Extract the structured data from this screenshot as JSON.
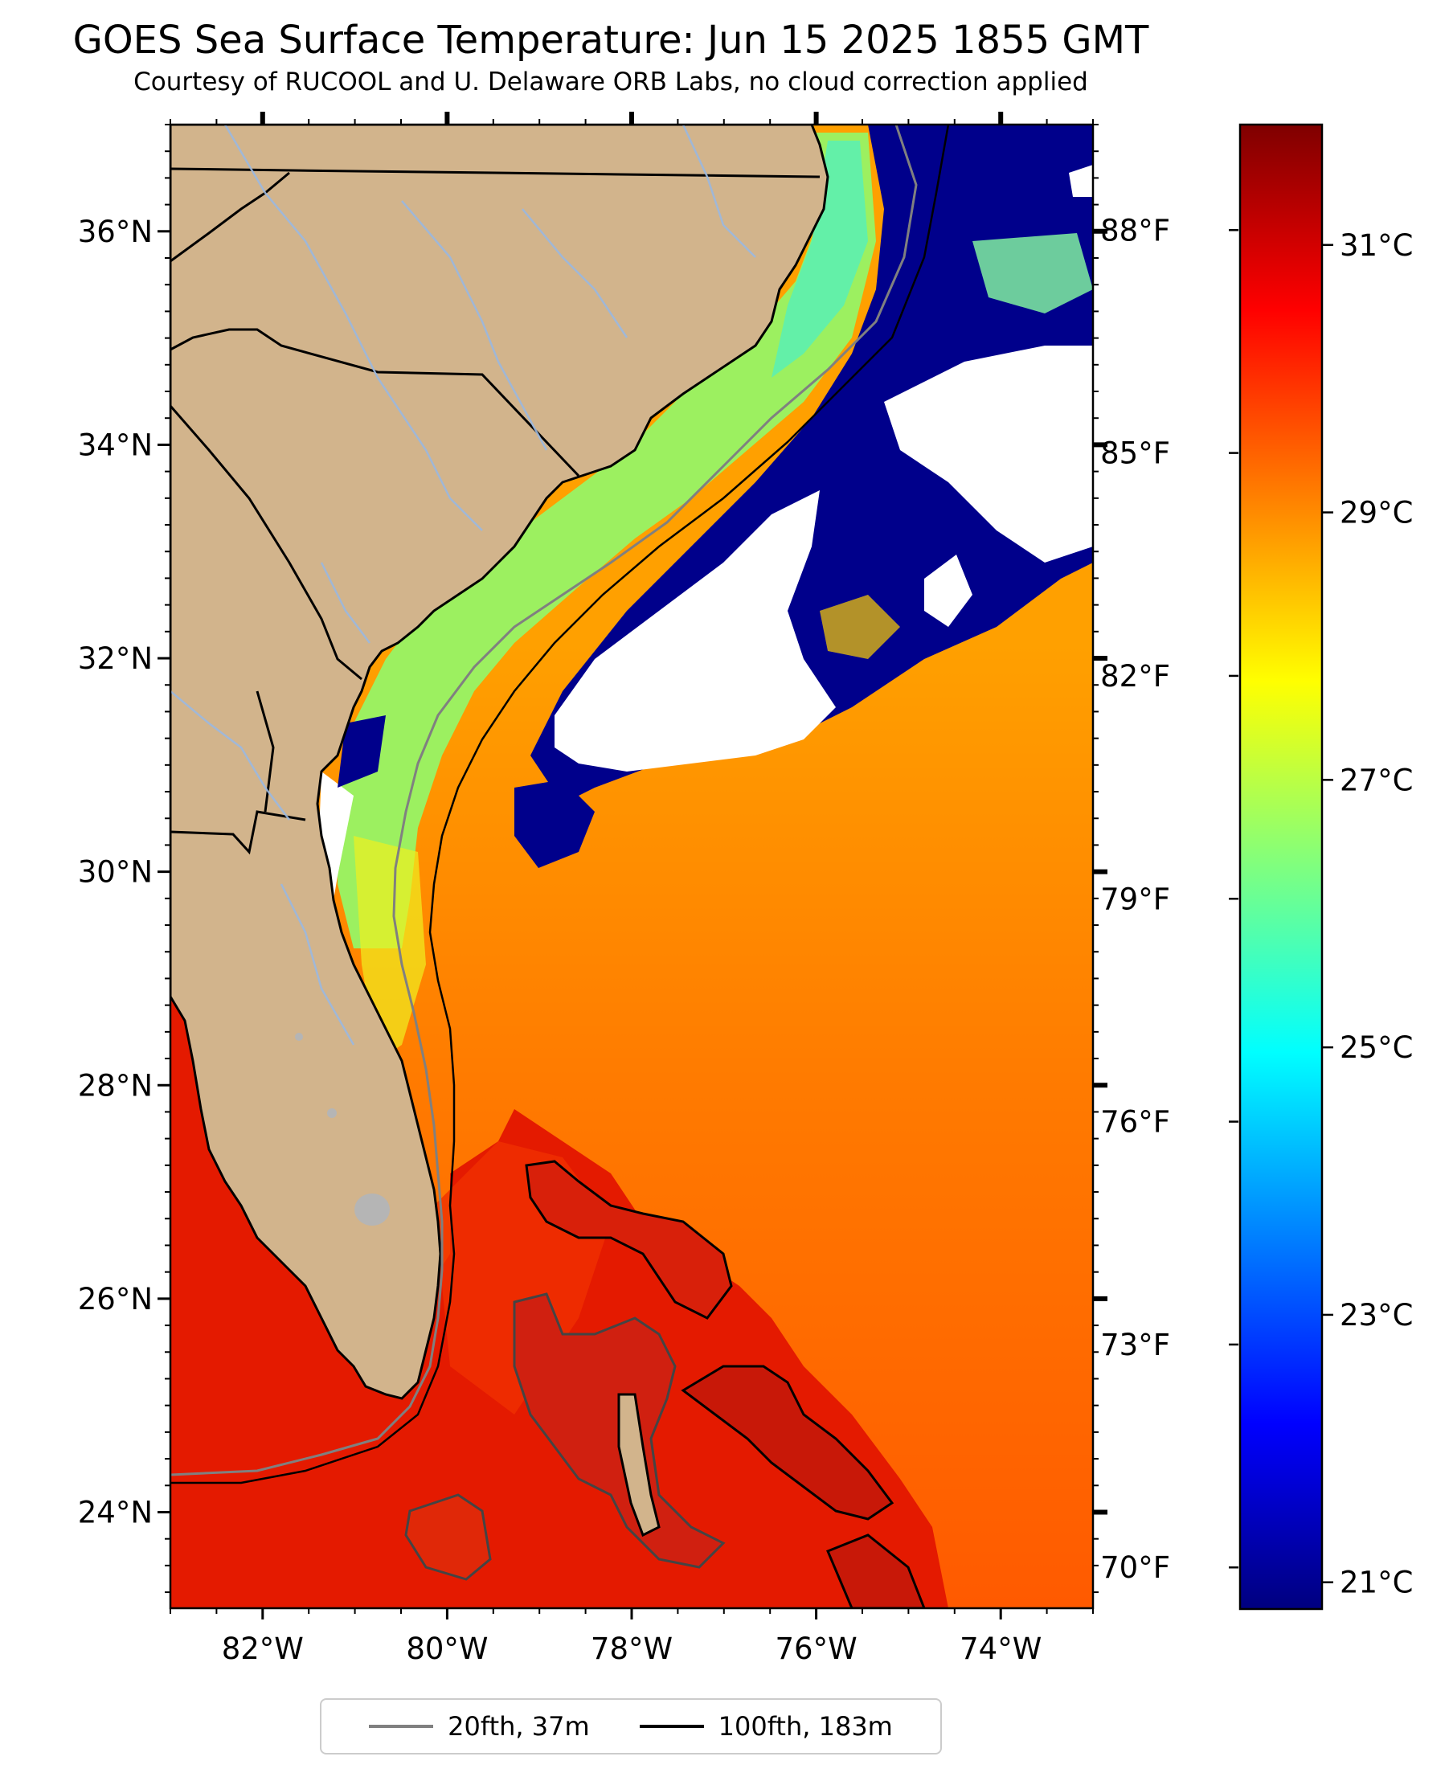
{
  "title": "GOES Sea Surface Temperature: Jun 15 2025 1855 GMT",
  "subtitle": "Courtesy of RUCOOL and U. Delaware ORB Labs, no cloud correction applied",
  "map": {
    "lon_range": [
      -83,
      -73
    ],
    "lat_range": [
      23.1,
      37.0
    ],
    "lon_ticks": [
      {
        "value": -82,
        "label": "82°W"
      },
      {
        "value": -80,
        "label": "80°W"
      },
      {
        "value": -78,
        "label": "78°W"
      },
      {
        "value": -76,
        "label": "76°W"
      },
      {
        "value": -74,
        "label": "74°W"
      }
    ],
    "lat_ticks": [
      {
        "value": 24,
        "label": "24°N"
      },
      {
        "value": 26,
        "label": "26°N"
      },
      {
        "value": 28,
        "label": "28°N"
      },
      {
        "value": 30,
        "label": "30°N"
      },
      {
        "value": 32,
        "label": "32°N"
      },
      {
        "value": 34,
        "label": "34°N"
      },
      {
        "value": 36,
        "label": "36°N"
      }
    ],
    "colors": {
      "land": "#d2b48c",
      "gulf_stream": "#ff8a00",
      "warm_south": "#e41a00",
      "cool_shelf": "#9cf060",
      "cold": "#00008b",
      "cloud": "#ffffff",
      "lake": "#b5b5b5"
    }
  },
  "colorbar": {
    "vmin_c": 20.8,
    "vmax_c": 31.9,
    "colors": [
      "#00007f",
      "#0000ff",
      "#007fff",
      "#00ffff",
      "#7fff7f",
      "#ffff00",
      "#ff7f00",
      "#ff0000",
      "#7f0000"
    ],
    "celsius_ticks": [
      {
        "value": 21,
        "label": "21°C"
      },
      {
        "value": 23,
        "label": "23°C"
      },
      {
        "value": 25,
        "label": "25°C"
      },
      {
        "value": 27,
        "label": "27°C"
      },
      {
        "value": 29,
        "label": "29°C"
      },
      {
        "value": 31,
        "label": "31°C"
      }
    ],
    "fahrenheit_ticks": [
      {
        "value": 70,
        "label": "70°F"
      },
      {
        "value": 73,
        "label": "73°F"
      },
      {
        "value": 76,
        "label": "76°F"
      },
      {
        "value": 79,
        "label": "79°F"
      },
      {
        "value": 82,
        "label": "82°F"
      },
      {
        "value": 85,
        "label": "85°F"
      },
      {
        "value": 88,
        "label": "88°F"
      }
    ]
  },
  "legend": {
    "placement": "bottom-center",
    "items": [
      {
        "label": "20fth, 37m",
        "color": "#808080"
      },
      {
        "label": "100fth, 183m",
        "color": "#000000"
      }
    ]
  }
}
